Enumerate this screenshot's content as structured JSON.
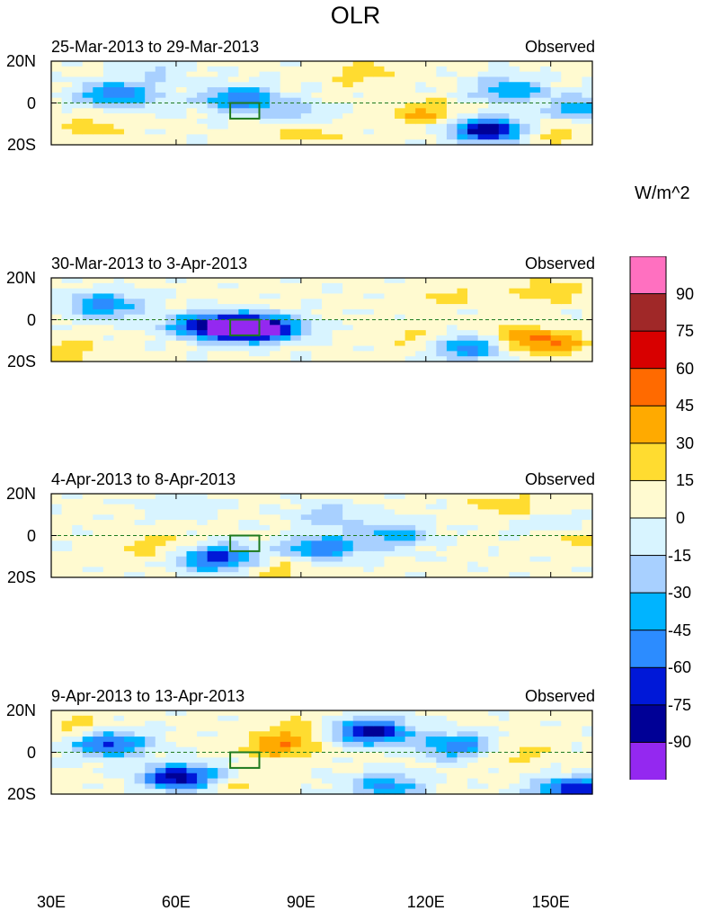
{
  "chart_data": {
    "type": "heatmap",
    "title": "OLR",
    "units": "W/m^2",
    "panels": [
      {
        "title": "25-Mar-2013 to 29-Mar-2013",
        "label": "Observed",
        "blobs": [
          {
            "lon": 46,
            "lat": 4,
            "value": -60
          },
          {
            "lon": 75,
            "lat": 2,
            "value": -60
          },
          {
            "lon": 88,
            "lat": -5,
            "value": -30
          },
          {
            "lon": 135,
            "lat": -13,
            "value": -90
          },
          {
            "lon": 140,
            "lat": 6,
            "value": -45
          },
          {
            "lon": 158,
            "lat": -3,
            "value": -45
          },
          {
            "lon": 55,
            "lat": 16,
            "value": -20
          },
          {
            "lon": 120,
            "lat": -5,
            "value": 30
          },
          {
            "lon": 90,
            "lat": -14,
            "value": 20
          },
          {
            "lon": 150,
            "lat": -14,
            "value": 20
          },
          {
            "lon": 105,
            "lat": 14,
            "value": 20
          },
          {
            "lon": 40,
            "lat": -12,
            "value": 20
          }
        ]
      },
      {
        "title": "30-Mar-2013 to 3-Apr-2013",
        "label": "Observed",
        "blobs": [
          {
            "lon": 74,
            "lat": -4,
            "value": -90
          },
          {
            "lon": 82,
            "lat": -4,
            "value": -75
          },
          {
            "lon": 66,
            "lat": -3,
            "value": -50
          },
          {
            "lon": 43,
            "lat": 7,
            "value": -55
          },
          {
            "lon": 130,
            "lat": -13,
            "value": -65
          },
          {
            "lon": 150,
            "lat": -11,
            "value": 40
          },
          {
            "lon": 140,
            "lat": -8,
            "value": 25
          },
          {
            "lon": 150,
            "lat": 14,
            "value": 20
          },
          {
            "lon": 125,
            "lat": 12,
            "value": 15
          },
          {
            "lon": 35,
            "lat": -15,
            "value": 20
          },
          {
            "lon": 120,
            "lat": -10,
            "value": 20
          }
        ]
      },
      {
        "title": "4-Apr-2013 to 8-Apr-2013",
        "label": "Observed",
        "blobs": [
          {
            "lon": 70,
            "lat": -11,
            "value": -75
          },
          {
            "lon": 95,
            "lat": -6,
            "value": -60
          },
          {
            "lon": 112,
            "lat": 0,
            "value": -40
          },
          {
            "lon": 97,
            "lat": 10,
            "value": -25
          },
          {
            "lon": 150,
            "lat": 5,
            "value": -20
          },
          {
            "lon": 140,
            "lat": 14,
            "value": 20
          },
          {
            "lon": 55,
            "lat": -5,
            "value": 20
          },
          {
            "lon": 85,
            "lat": -16,
            "value": 20
          },
          {
            "lon": 60,
            "lat": 14,
            "value": -15
          },
          {
            "lon": 155,
            "lat": 0,
            "value": 20
          }
        ]
      },
      {
        "title": "9-Apr-2013 to 13-Apr-2013",
        "label": "Observed",
        "blobs": [
          {
            "lon": 107,
            "lat": 10,
            "value": -90
          },
          {
            "lon": 61,
            "lat": -12,
            "value": -90
          },
          {
            "lon": 44,
            "lat": 4,
            "value": -70
          },
          {
            "lon": 155,
            "lat": -18,
            "value": -80
          },
          {
            "lon": 110,
            "lat": -16,
            "value": -50
          },
          {
            "lon": 128,
            "lat": 3,
            "value": -60
          },
          {
            "lon": 85,
            "lat": 3,
            "value": 40
          },
          {
            "lon": 90,
            "lat": 12,
            "value": 20
          },
          {
            "lon": 140,
            "lat": 0,
            "value": 20
          },
          {
            "lon": 35,
            "lat": 12,
            "value": 20
          },
          {
            "lon": 75,
            "lat": -16,
            "value": 15
          }
        ]
      }
    ],
    "xaxis": {
      "range": [
        30,
        160
      ],
      "ticks": [
        30,
        60,
        90,
        120,
        150
      ],
      "tick_labels": [
        "30E",
        "60E",
        "90E",
        "120E",
        "150E"
      ]
    },
    "yaxis": {
      "range": [
        -20,
        20
      ],
      "ticks": [
        20,
        0,
        -20
      ],
      "tick_labels": [
        "20N",
        "0",
        "20S"
      ]
    },
    "colorbar": {
      "levels": [
        -90,
        -75,
        -60,
        -45,
        -30,
        -15,
        0,
        15,
        30,
        45,
        60,
        75,
        90
      ],
      "labels": [
        "90",
        "75",
        "60",
        "45",
        "30",
        "15",
        "0",
        "-15",
        "-30",
        "-45",
        "-60",
        "-75",
        "-90"
      ],
      "colors_top_to_bottom": [
        "#ff70c0",
        "#a02828",
        "#d80000",
        "#ff6a00",
        "#ffaa00",
        "#ffdc30",
        "#fffad0",
        "#d8f4ff",
        "#a8d0ff",
        "#00b4ff",
        "#2c8cff",
        "#0018d8",
        "#000096",
        "#9428f0"
      ]
    },
    "box": {
      "lon": [
        73,
        80
      ],
      "lat": [
        -7.5,
        0
      ]
    }
  }
}
